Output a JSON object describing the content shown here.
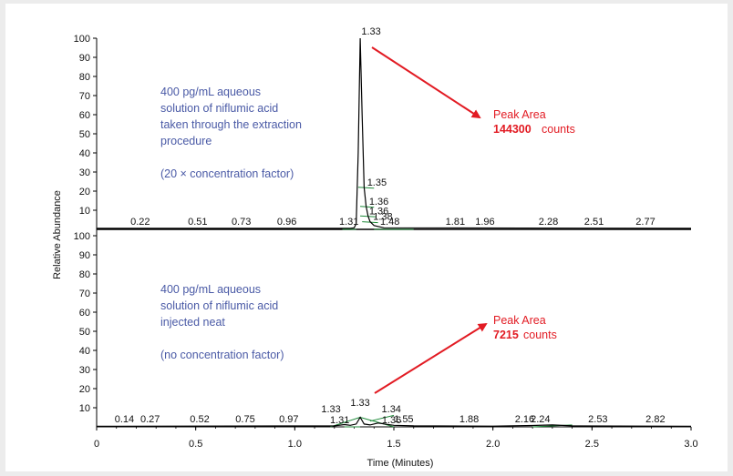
{
  "chart_data": {
    "type": "line",
    "xlabel": "Time (Minutes)",
    "ylabel": "Relative Abundance",
    "xlim": [
      0,
      3.0
    ],
    "ylim": [
      0,
      100
    ],
    "x_ticks": [
      "0",
      "0.5",
      "1.0",
      "1.5",
      "2.0",
      "2.5",
      "3.0"
    ],
    "y_ticks": [
      "10",
      "20",
      "30",
      "40",
      "50",
      "60",
      "70",
      "80",
      "90",
      "100"
    ],
    "panels": [
      {
        "note_lines": [
          "400 pg/mL aqueous",
          "solution of niflumic acid",
          "taken through the extraction",
          "procedure",
          "",
          "(20 × concentration factor)"
        ],
        "annotation": {
          "label": "Peak Area",
          "value": "144300",
          "unit": "counts"
        },
        "series": [
          {
            "x": [
              0.0,
              1.28,
              1.3,
              1.31,
              1.32,
              1.33,
              1.34,
              1.35,
              1.36,
              1.37,
              1.38,
              1.4,
              1.45,
              3.0
            ],
            "y": [
              0.5,
              0.5,
              0.8,
              3,
              40,
              100,
              60,
              22,
              12,
              7,
              4,
              2,
              0.8,
              0.5
            ]
          }
        ],
        "peak_labels": [
          {
            "x": 0.22,
            "y": 0,
            "text": "0.22"
          },
          {
            "x": 0.51,
            "y": 0,
            "text": "0.51"
          },
          {
            "x": 0.73,
            "y": 0,
            "text": "0.73"
          },
          {
            "x": 0.96,
            "y": 0,
            "text": "0.96"
          },
          {
            "x": 1.31,
            "y": 0,
            "text": "1.31"
          },
          {
            "x": 1.33,
            "y": 100,
            "text": "1.33"
          },
          {
            "x": 1.35,
            "y": 22,
            "text": "1.35"
          },
          {
            "x": 1.36,
            "y": 12,
            "text": "1.36"
          },
          {
            "x": 1.36,
            "y": 7,
            "text": "1.36"
          },
          {
            "x": 1.38,
            "y": 4,
            "text": "1.38"
          },
          {
            "x": 1.48,
            "y": 0,
            "text": "1.48"
          },
          {
            "x": 1.81,
            "y": 0,
            "text": "1.81"
          },
          {
            "x": 1.96,
            "y": 0,
            "text": "1.96"
          },
          {
            "x": 2.28,
            "y": 0,
            "text": "2.28"
          },
          {
            "x": 2.51,
            "y": 0,
            "text": "2.51"
          },
          {
            "x": 2.77,
            "y": 0,
            "text": "2.77"
          }
        ]
      },
      {
        "note_lines": [
          "400 pg/mL aqueous",
          "solution of niflumic acid",
          "injected neat",
          "",
          "(no concentration factor)"
        ],
        "annotation": {
          "label": "Peak Area",
          "value": "7215",
          "unit": "counts"
        },
        "series": [
          {
            "x": [
              0.0,
              1.2,
              1.25,
              1.28,
              1.31,
              1.33,
              1.35,
              1.38,
              1.42,
              1.5,
              1.6,
              2.0,
              2.2,
              2.3,
              2.4,
              3.0
            ],
            "y": [
              0.3,
              0.5,
              1.2,
              0.8,
              1.5,
              5,
              1.5,
              1,
              2,
              0.8,
              0.5,
              0.4,
              0.7,
              1,
              0.5,
              0.3
            ]
          }
        ],
        "peak_labels": [
          {
            "x": 0.14,
            "y": 0,
            "text": "0.14"
          },
          {
            "x": 0.27,
            "y": 0,
            "text": "0.27"
          },
          {
            "x": 0.52,
            "y": 0,
            "text": "0.52"
          },
          {
            "x": 0.75,
            "y": 0,
            "text": "0.75"
          },
          {
            "x": 0.97,
            "y": 0,
            "text": "0.97"
          },
          {
            "x": 1.31,
            "y": 0,
            "text": "1.31"
          },
          {
            "x": 1.33,
            "y": 5,
            "text": "1.33"
          },
          {
            "x": 1.33,
            "y": 10,
            "text": "1.33"
          },
          {
            "x": 1.34,
            "y": 5,
            "text": "1.34"
          },
          {
            "x": 1.36,
            "y": 0,
            "text": "1.36"
          },
          {
            "x": 1.55,
            "y": 0,
            "text": "1.55"
          },
          {
            "x": 1.88,
            "y": 0,
            "text": "1.88"
          },
          {
            "x": 2.16,
            "y": 0,
            "text": "2.16"
          },
          {
            "x": 2.24,
            "y": 0,
            "text": "2.24"
          },
          {
            "x": 2.53,
            "y": 0,
            "text": "2.53"
          },
          {
            "x": 2.82,
            "y": 0,
            "text": "2.82"
          }
        ]
      }
    ]
  },
  "colors": {
    "trace": "#000000",
    "integration": "#1f8a3a",
    "note": "#4a5aa6",
    "arrow": "#e21b23"
  }
}
